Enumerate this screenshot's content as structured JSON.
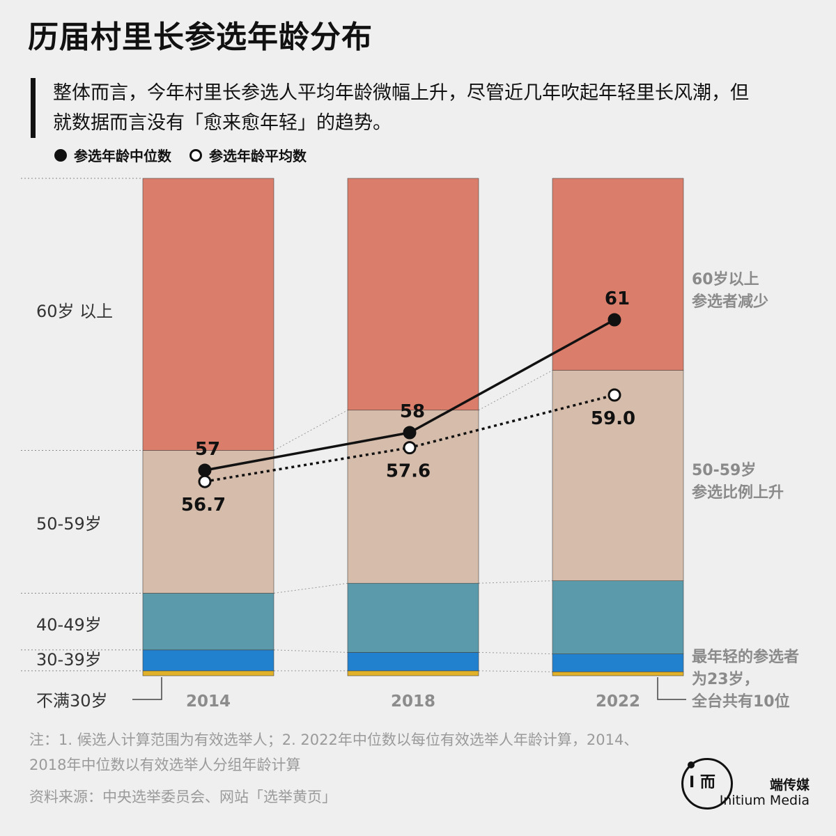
{
  "title": "历届村里长参选年龄分布",
  "subtitle": "整体而言，今年村里长参选人平均年龄微幅上升，尽管近几年吹起年轻里长风潮，但就数据而言没有「愈来愈年轻」的趋势。",
  "legend": {
    "median_label": "参选年龄中位数",
    "mean_label": "参选年龄平均数"
  },
  "colors": {
    "over60": "#db7d6b",
    "age50_59": "#d6bcaa",
    "age40_49": "#5a9aab",
    "age30_39": "#2181cf",
    "under30": "#e2b12a",
    "background": "#efefef"
  },
  "chart_data": {
    "type": "bar",
    "stacked": true,
    "percent_stacked": true,
    "categories": [
      "2014",
      "2018",
      "2022"
    ],
    "series": [
      {
        "name": "不满30岁",
        "key": "under30",
        "values": [
          1.0,
          1.0,
          0.8
        ]
      },
      {
        "name": "30-39岁",
        "key": "age30_39",
        "values": [
          4.2,
          3.7,
          3.6
        ]
      },
      {
        "name": "40-49岁",
        "key": "age40_49",
        "values": [
          11.4,
          13.9,
          14.7
        ]
      },
      {
        "name": "50-59岁",
        "key": "age50_59",
        "values": [
          28.7,
          34.8,
          42.3
        ]
      },
      {
        "name": "60岁 以上",
        "key": "over60",
        "values": [
          54.7,
          46.6,
          38.6
        ]
      }
    ],
    "lines": [
      {
        "name": "参选年龄中位数",
        "style": "solid",
        "marker": "filled",
        "values": [
          57,
          58,
          61
        ],
        "labels": [
          "57",
          "58",
          "61"
        ]
      },
      {
        "name": "参选年龄平均数",
        "style": "dotted",
        "marker": "hollow",
        "values": [
          56.7,
          57.6,
          59.0
        ],
        "labels": [
          "56.7",
          "57.6",
          "59.0"
        ]
      }
    ],
    "left_labels": [
      "60岁 以上",
      "50-59岁",
      "40-49岁",
      "30-39岁",
      "不满30岁"
    ],
    "annotations": [
      "60岁以上\n参选者减少",
      "50-59岁\n参选比例上升",
      "最年轻的参选者\n为23岁，\n全台共有10位"
    ]
  },
  "footnote": "注：1. 候选人计算范围为有效选举人；2. 2022年中位数以每位有效选举人年龄计算，2014、2018年中位数以有效选举人分组年龄计算",
  "source": "资料来源：中央选举委员会、网站「选举黄页」",
  "brand": {
    "cn": "端传媒",
    "en": "Initium Media",
    "mark": "I 而"
  }
}
